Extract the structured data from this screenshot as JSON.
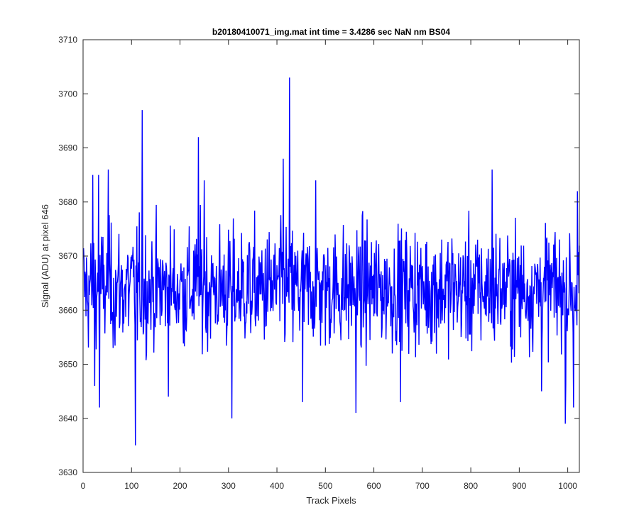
{
  "chart_data": {
    "type": "line",
    "title": "b20180410071_img.mat int time = 3.4286 sec  NaN nm BS04",
    "xlabel": "Track Pixels",
    "ylabel": "Signal (ADU) at pixel 646",
    "xlim": [
      0,
      1024
    ],
    "ylim": [
      3630,
      3710
    ],
    "xticks": [
      "0",
      "100",
      "200",
      "300",
      "400",
      "500",
      "600",
      "700",
      "800",
      "900",
      "1000"
    ],
    "yticks": [
      "3630",
      "3640",
      "3650",
      "3660",
      "3670",
      "3680",
      "3690",
      "3700",
      "3710"
    ],
    "grid": false,
    "line_color": "#0000ff",
    "series": [
      {
        "name": "",
        "noise_level": 3664,
        "num_points": 1024,
        "notable_points": [
          {
            "x": 20,
            "y": 3685
          },
          {
            "x": 24,
            "y": 3646
          },
          {
            "x": 32,
            "y": 3685
          },
          {
            "x": 34,
            "y": 3642
          },
          {
            "x": 52,
            "y": 3686
          },
          {
            "x": 108,
            "y": 3635
          },
          {
            "x": 122,
            "y": 3697
          },
          {
            "x": 176,
            "y": 3644
          },
          {
            "x": 238,
            "y": 3692
          },
          {
            "x": 250,
            "y": 3684
          },
          {
            "x": 307,
            "y": 3640
          },
          {
            "x": 413,
            "y": 3688
          },
          {
            "x": 426,
            "y": 3703
          },
          {
            "x": 453,
            "y": 3643
          },
          {
            "x": 480,
            "y": 3684
          },
          {
            "x": 563,
            "y": 3641
          },
          {
            "x": 655,
            "y": 3643
          },
          {
            "x": 844,
            "y": 3686
          },
          {
            "x": 946,
            "y": 3645
          },
          {
            "x": 995,
            "y": 3639
          },
          {
            "x": 1012,
            "y": 3642
          },
          {
            "x": 1020,
            "y": 3682
          }
        ]
      }
    ]
  }
}
